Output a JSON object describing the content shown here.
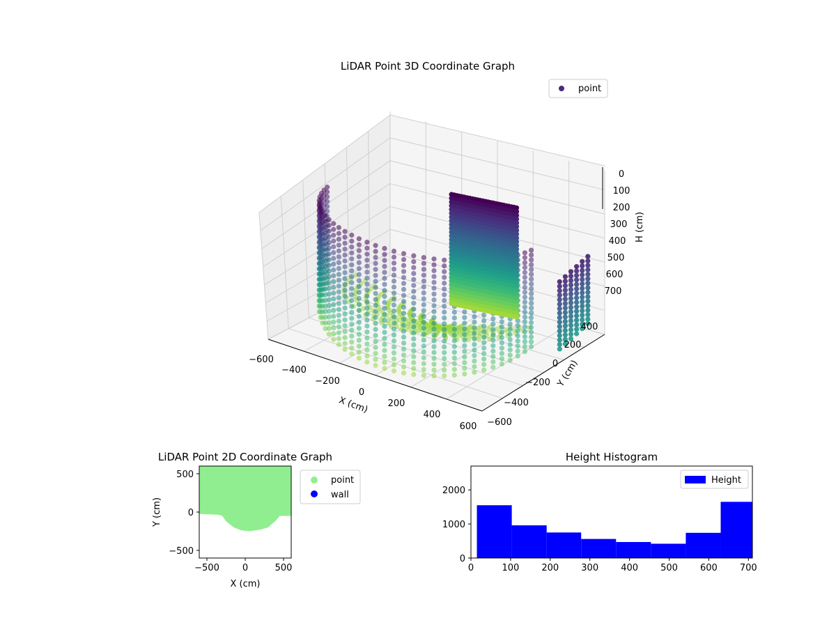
{
  "chart_data": [
    {
      "type": "scatter",
      "projection": "3d",
      "title": "LiDAR Point 3D Coordinate Graph",
      "xlabel": "X (cm)",
      "ylabel": "Y (cm)",
      "zlabel": "H (cm)",
      "xticks": [
        "−600",
        "−400",
        "−200",
        "0",
        "200",
        "400",
        "600"
      ],
      "yticks": [
        "−600",
        "−400",
        "−200",
        "0",
        "200",
        "400"
      ],
      "zticks": [
        "0",
        "100",
        "200",
        "300",
        "400",
        "500",
        "600",
        "700"
      ],
      "xlim": [
        -600,
        600
      ],
      "ylim": [
        -600,
        600
      ],
      "zlim": [
        0,
        700
      ],
      "zaxis_inverted": true,
      "colormap": "viridis",
      "legend": {
        "labels": [
          "point"
        ],
        "placement": "top-right",
        "color": "#472c7a"
      },
      "grid": true
    },
    {
      "type": "scatter",
      "title": "LiDAR Point 2D Coordinate Graph",
      "xlabel": "X (cm)",
      "ylabel": "Y (cm)",
      "xticks": [
        "−500",
        "0",
        "500"
      ],
      "yticks": [
        "−500",
        "0",
        "500"
      ],
      "xlim": [
        -600,
        600
      ],
      "ylim": [
        -600,
        600
      ],
      "series": [
        {
          "name": "point",
          "color": "#90ee90",
          "boundary": [
            [
              -600,
              600
            ],
            [
              600,
              600
            ],
            [
              600,
              -50
            ],
            [
              450,
              -50
            ],
            [
              400,
              -110
            ],
            [
              300,
              -200
            ],
            [
              200,
              -230
            ],
            [
              60,
              -250
            ],
            [
              -50,
              -240
            ],
            [
              -150,
              -200
            ],
            [
              -250,
              -120
            ],
            [
              -300,
              -50
            ],
            [
              -350,
              -35
            ],
            [
              -480,
              -30
            ],
            [
              -600,
              -25
            ]
          ]
        },
        {
          "name": "wall",
          "color": "#0000ff",
          "points": []
        }
      ],
      "legend": {
        "labels": [
          "point",
          "wall"
        ],
        "placement": "outside right"
      }
    },
    {
      "type": "bar",
      "title": "Height Histogram",
      "xticks": [
        "0",
        "100",
        "200",
        "300",
        "400",
        "500",
        "600",
        "700"
      ],
      "yticks": [
        "0",
        "1000",
        "2000"
      ],
      "xlim": [
        0,
        710
      ],
      "ylim": [
        0,
        2700
      ],
      "bins": [
        {
          "x0": 15,
          "x1": 103,
          "count": 1550
        },
        {
          "x0": 103,
          "x1": 191,
          "count": 960
        },
        {
          "x0": 191,
          "x1": 278,
          "count": 750
        },
        {
          "x0": 278,
          "x1": 366,
          "count": 560
        },
        {
          "x0": 366,
          "x1": 454,
          "count": 470
        },
        {
          "x0": 454,
          "x1": 542,
          "count": 420
        },
        {
          "x0": 542,
          "x1": 630,
          "count": 740
        },
        {
          "x0": 630,
          "x1": 710,
          "count": 1650
        }
      ],
      "series": [
        {
          "name": "Height",
          "color": "#0000ff"
        }
      ],
      "legend": {
        "labels": [
          "Height"
        ],
        "placement": "top-right"
      }
    }
  ]
}
